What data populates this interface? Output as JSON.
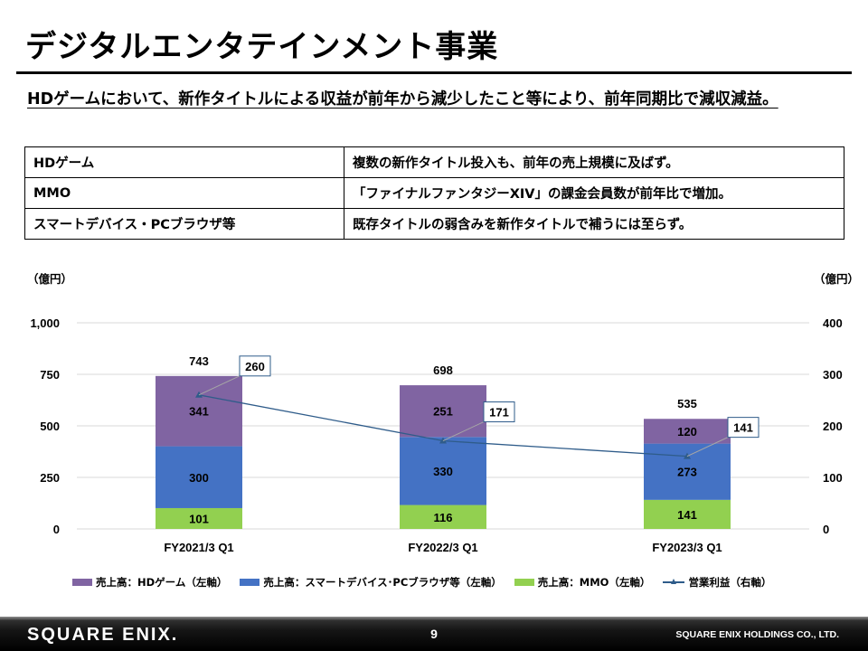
{
  "slide": {
    "title": "デジタルエンタテインメント事業",
    "headline": "HDゲームにおいて、新作タイトルによる収益が前年から減少したこと等により、前年同期比で減収減益。"
  },
  "summary_table": [
    {
      "segment": "HDゲーム",
      "comment": "複数の新作タイトル投入も、前年の売上規模に及ばず。"
    },
    {
      "segment": "MMO",
      "comment": "「ファイナルファンタジーXIV」の課金会員数が前年比で増加。"
    },
    {
      "segment": "スマートデバイス・PCブラウザ等",
      "comment": "既存タイトルの弱含みを新作タイトルで補うには至らず。"
    }
  ],
  "units": {
    "left": "（億円）",
    "right": "（億円）"
  },
  "chart_data": {
    "type": "bar",
    "stacked": true,
    "categories": [
      "FY2021/3 Q1",
      "FY2022/3 Q1",
      "FY2023/3 Q1"
    ],
    "series": [
      {
        "name": "売上高：MMO（左軸）",
        "axis": "left",
        "color": "#92d050",
        "values": [
          101,
          116,
          141
        ]
      },
      {
        "name": "売上高：スマートデバイス･PCブラウザ等（左軸）",
        "axis": "left",
        "color": "#4472c4",
        "values": [
          300,
          330,
          273
        ]
      },
      {
        "name": "売上高：HDゲーム（左軸）",
        "axis": "left",
        "color": "#8064a2",
        "values": [
          341,
          251,
          120
        ]
      },
      {
        "name": "営業利益（右軸）",
        "axis": "right",
        "type": "line",
        "color": "#2f5c8a",
        "values": [
          260,
          171,
          141
        ]
      }
    ],
    "totals": [
      743,
      698,
      535
    ],
    "totals_labels": [
      "743",
      "698",
      "535"
    ],
    "left_axis": {
      "ylim": [
        0,
        1000
      ],
      "ticks": [
        0,
        250,
        500,
        750,
        1000
      ],
      "tick_labels": [
        "0",
        "250",
        "500",
        "750",
        "1,000"
      ]
    },
    "right_axis": {
      "ylim": [
        0,
        400
      ],
      "ticks": [
        0,
        100,
        200,
        300,
        400
      ],
      "tick_labels": [
        "0",
        "100",
        "200",
        "300",
        "400"
      ]
    },
    "grid": true,
    "legend_position": "bottom"
  },
  "legend": [
    {
      "label": "売上高：HDゲーム（左軸）",
      "color": "#8064a2",
      "kind": "bar"
    },
    {
      "label": "売上高：スマートデバイス･PCブラウザ等（左軸）",
      "color": "#4472c4",
      "kind": "bar"
    },
    {
      "label": "売上高：MMO（左軸）",
      "color": "#92d050",
      "kind": "bar"
    },
    {
      "label": "営業利益（右軸）",
      "color": "#2f5c8a",
      "kind": "line"
    }
  ],
  "footer": {
    "logo": "SQUARE ENIX.",
    "page": "9",
    "company": "SQUARE ENIX HOLDINGS CO., LTD."
  }
}
